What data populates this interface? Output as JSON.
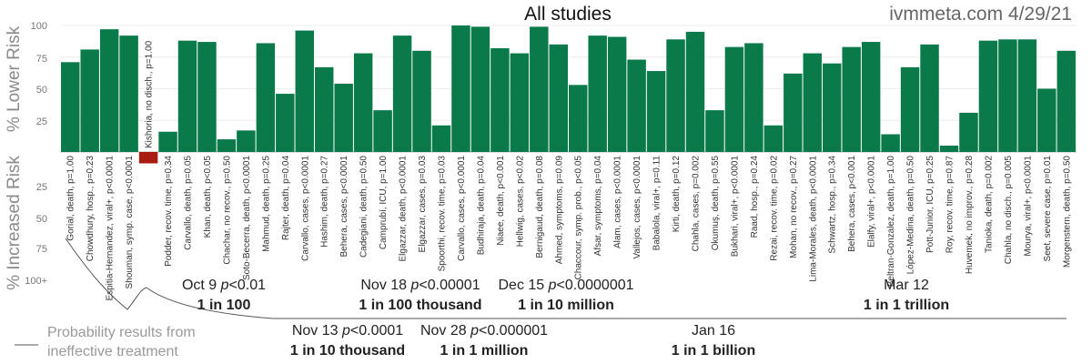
{
  "chart_data": {
    "type": "bar",
    "title": "All studies",
    "source": "ivmmeta.com 4/29/21",
    "ylabel_lower": "% Lower Risk",
    "ylabel_increased": "% Increased Risk",
    "yticks_upper": [
      "100",
      "75",
      "50",
      "25"
    ],
    "yticks_lower": [
      "25",
      "50",
      "75",
      "100+"
    ],
    "ylim": [
      -100,
      100
    ],
    "color_positive": "#0b7a4b",
    "color_negative": "#a81d10",
    "studies": [
      {
        "label": "Gorial, death, p=1.00",
        "value": 71
      },
      {
        "label": "Chowdhury, hosp., p=0.23",
        "value": 81
      },
      {
        "label": "Espitia-Hernandez, viral+, p<0.0001",
        "value": 97
      },
      {
        "label": "Shouman, symp. case, p<0.0001",
        "value": 92
      },
      {
        "label": "Kishoria, no disch., p=1.00",
        "value": -9
      },
      {
        "label": "Podder, recov. time, p=0.34",
        "value": 16
      },
      {
        "label": "Carvallo, death, p=0.05",
        "value": 88
      },
      {
        "label": "Khan, death, p<0.05",
        "value": 87
      },
      {
        "label": "Chachar, no recov., p=0.50",
        "value": 10
      },
      {
        "label": "Soto-Becerra, death, p<0.0001",
        "value": 17
      },
      {
        "label": "Mahmud, death, p=0.25",
        "value": 86
      },
      {
        "label": "Rajter, death, p=0.04",
        "value": 46
      },
      {
        "label": "Carvallo, cases, p<0.0001",
        "value": 96
      },
      {
        "label": "Hashim, death, p=0.27",
        "value": 67
      },
      {
        "label": "Behera, cases, p<0.0001",
        "value": 54
      },
      {
        "label": "Cadegiani, death, p=0.50",
        "value": 78
      },
      {
        "label": "Camprubí, ICU, p=1.00",
        "value": 33
      },
      {
        "label": "Elgazzar, death, p<0.0001",
        "value": 92
      },
      {
        "label": "Elgazzar, cases, p=0.03",
        "value": 80
      },
      {
        "label": "Spoorthi, recov. time, p=0.03",
        "value": 21
      },
      {
        "label": "Carvallo, cases, p<0.0001",
        "value": 100
      },
      {
        "label": "Budhiraja, death, p=0.04",
        "value": 99
      },
      {
        "label": "Niaee, death, p<0.001",
        "value": 82
      },
      {
        "label": "Hellwig, cases, p<0.02",
        "value": 78
      },
      {
        "label": "Bernigaud, death, p=0.08",
        "value": 99
      },
      {
        "label": "Ahmed, symptoms, p=0.09",
        "value": 85
      },
      {
        "label": "Chaccour, symp. prob., p<0.05",
        "value": 53
      },
      {
        "label": "Afsar, symptoms, p=0.04",
        "value": 92
      },
      {
        "label": "Alam, cases, p<0.0001",
        "value": 91
      },
      {
        "label": "Vallejos, cases, p<0.0001",
        "value": 73
      },
      {
        "label": "Babalola, viral+, p=0.11",
        "value": 64
      },
      {
        "label": "Kirti, death, p=0.12",
        "value": 89
      },
      {
        "label": "Chahla, cases, p=0.002",
        "value": 95
      },
      {
        "label": "Okumuş, death, p=0.55",
        "value": 33
      },
      {
        "label": "Bukhari, viral+, p<0.0001",
        "value": 83
      },
      {
        "label": "Raad, hosp., p=0.24",
        "value": 86
      },
      {
        "label": "Rezai, recov. time, p=0.02",
        "value": 21
      },
      {
        "label": "Mohan, no recov., p=0.27",
        "value": 62
      },
      {
        "label": "Lima-Morales, death, p<0.0001",
        "value": 78
      },
      {
        "label": "Schwartz, hosp., p=0.34",
        "value": 70
      },
      {
        "label": "Behera, cases, p<0.001",
        "value": 83
      },
      {
        "label": "Elalfy, viral+, p<0.0001",
        "value": 87
      },
      {
        "label": "Beltran-Gonzalez, death, p=1.00",
        "value": 14
      },
      {
        "label": "López-Medina, death, p=0.50",
        "value": 67
      },
      {
        "label": "Pott-Junior, ICU, p=0.25",
        "value": 85
      },
      {
        "label": "Roy, recov. time, p=0.87",
        "value": 5
      },
      {
        "label": "Huvemek, no improv., p=0.28",
        "value": 31
      },
      {
        "label": "Tanioka, death, p=0.002",
        "value": 88
      },
      {
        "label": "Chahla, no disch., p=0.005",
        "value": 89
      },
      {
        "label": "Mourya, viral+, p<0.0001",
        "value": 89
      },
      {
        "label": "Seet, severe case, p=0.01",
        "value": 50
      },
      {
        "label": "Morgenstern, death, p=0.50",
        "value": 80
      }
    ],
    "milestones": [
      {
        "date": "Oct 9 ",
        "p": "p",
        "threshold": "<0.01",
        "odds": "1 in 100"
      },
      {
        "date": "Nov 13 ",
        "p": "p",
        "threshold": "<0.0001",
        "odds": "1 in 10 thousand"
      },
      {
        "date": "Nov 18 ",
        "p": "p",
        "threshold": "<0.00001",
        "odds": "1 in 100 thousand"
      },
      {
        "date": "Nov 28 ",
        "p": "p",
        "threshold": "<0.000001",
        "odds": "1 in 1 million"
      },
      {
        "date": "Dec 15 ",
        "p": "p",
        "threshold": "<0.0000001",
        "odds": "1 in 10 million"
      },
      {
        "date": "Jan 16",
        "p": "",
        "threshold": "",
        "odds": "1 in 1 billion"
      },
      {
        "date": "Mar 12",
        "p": "",
        "threshold": "",
        "odds": "1 in 1 trillion"
      }
    ],
    "legend": {
      "line1": "Probability results from",
      "line2": "ineffective treatment"
    }
  }
}
